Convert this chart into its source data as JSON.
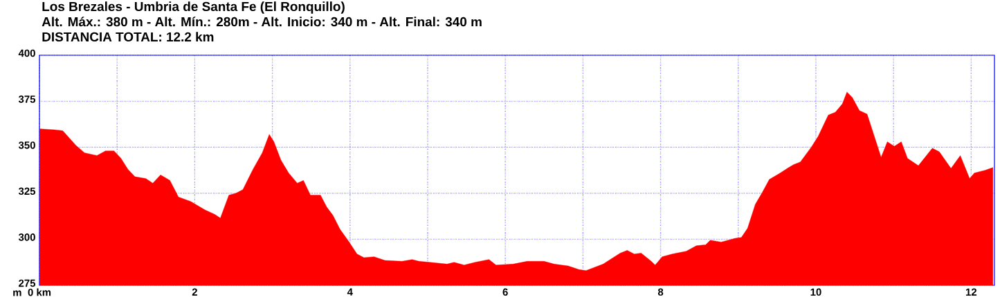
{
  "chart_data": {
    "type": "area",
    "title": "Los Brezales - Umbria de Santa Fe (El Ronquillo)",
    "subtitle": "Alt. Máx.: 380 m - Alt. Mín.: 280m - Alt. Inicio: 340 m - Alt. Final: 340 m",
    "annotations": [
      "DISTANCIA TOTAL: 12.2 km"
    ],
    "ylabel": "m",
    "x": [
      0,
      0.2,
      0.3,
      0.47,
      0.58,
      0.74,
      0.85,
      0.96,
      1.05,
      1.14,
      1.23,
      1.37,
      1.46,
      1.56,
      1.68,
      1.79,
      1.95,
      2.13,
      2.26,
      2.33,
      2.44,
      2.53,
      2.62,
      2.75,
      2.87,
      2.96,
      3.02,
      3.11,
      3.21,
      3.32,
      3.4,
      3.49,
      3.62,
      3.7,
      3.78,
      3.87,
      3.98,
      4.09,
      4.18,
      4.31,
      4.45,
      4.67,
      4.8,
      4.89,
      5.03,
      5.25,
      5.34,
      5.47,
      5.61,
      5.79,
      5.88,
      6.1,
      6.28,
      6.5,
      6.63,
      6.81,
      6.95,
      7.04,
      7.26,
      7.48,
      7.57,
      7.66,
      7.75,
      7.88,
      7.93,
      8.02,
      8.15,
      8.33,
      8.46,
      8.58,
      8.64,
      8.78,
      8.96,
      9.04,
      9.12,
      9.22,
      9.31,
      9.4,
      9.54,
      9.65,
      9.71,
      9.8,
      9.94,
      10.03,
      10.16,
      10.25,
      10.34,
      10.4,
      10.47,
      10.56,
      10.66,
      10.76,
      10.84,
      10.92,
      11.01,
      11.1,
      11.18,
      11.32,
      11.5,
      11.59,
      11.74,
      11.86,
      11.98,
      12.04,
      12.18,
      12.28
    ],
    "values": [
      360,
      359.5,
      359,
      351,
      347,
      345.5,
      348,
      348,
      344,
      338,
      334,
      333,
      330.5,
      335,
      332,
      323,
      320.5,
      316,
      313.5,
      311.5,
      324,
      325,
      327,
      338,
      347,
      357,
      353,
      343,
      336,
      330.5,
      332,
      324,
      324,
      317.5,
      313,
      305.5,
      299,
      292,
      290,
      290.5,
      288.5,
      288,
      289,
      288,
      287.5,
      286.5,
      287.5,
      286,
      287.5,
      289,
      286,
      286.5,
      288,
      288,
      286.5,
      285.5,
      283.5,
      283,
      286.5,
      292.5,
      294,
      292,
      292.5,
      288,
      286,
      290.5,
      292,
      293.5,
      296.5,
      297,
      299.5,
      298.5,
      300.5,
      301,
      306,
      319,
      325.5,
      332.5,
      336,
      339,
      340.5,
      342,
      350,
      356,
      367.5,
      369,
      373.5,
      380,
      377,
      370,
      368,
      355,
      344.5,
      353,
      350.5,
      353,
      344,
      340,
      349.5,
      347.5,
      338.5,
      345.5,
      333,
      336,
      337.5,
      339
    ],
    "color": "#ff0000",
    "xlim": [
      0,
      12.3
    ],
    "ylim": [
      275,
      400
    ],
    "xticks": [
      {
        "value": 0,
        "label": "0 km"
      },
      {
        "value": 1,
        "label": null
      },
      2,
      {
        "value": 3,
        "label": null
      },
      4,
      {
        "value": 5,
        "label": null
      },
      6,
      {
        "value": 7,
        "label": null
      },
      8,
      {
        "value": 9,
        "label": null
      },
      10,
      {
        "value": 11,
        "label": null
      },
      12
    ],
    "yticks": [
      275,
      300,
      325,
      350,
      375,
      400
    ],
    "grid": true
  }
}
